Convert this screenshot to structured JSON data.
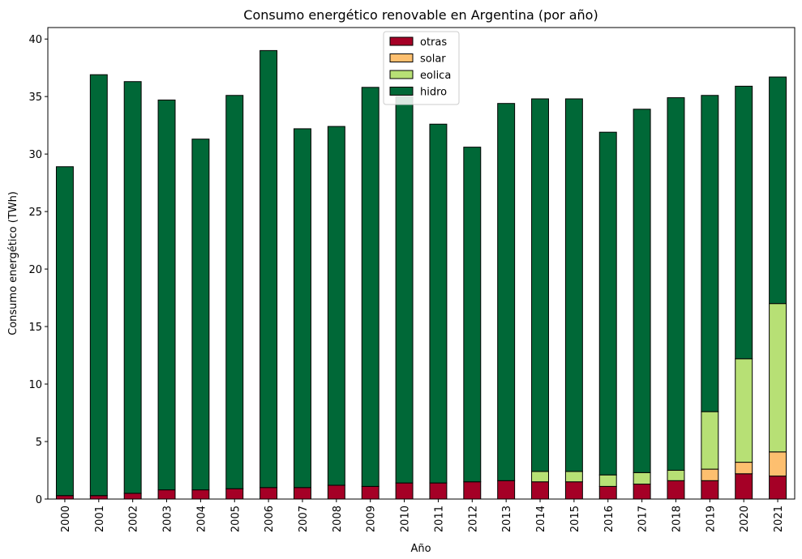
{
  "chart_data": {
    "type": "bar",
    "stacked": true,
    "title": "Consumo energético renovable en Argentina (por año)",
    "xlabel": "Año",
    "ylabel": "Consumo energético (TWh)",
    "ylim": [
      0,
      41
    ],
    "yticks": [
      0,
      5,
      10,
      15,
      20,
      25,
      30,
      35,
      40
    ],
    "grid": false,
    "legend_position": "top-center",
    "categories": [
      "2000",
      "2001",
      "2002",
      "2003",
      "2004",
      "2005",
      "2006",
      "2007",
      "2008",
      "2009",
      "2010",
      "2011",
      "2012",
      "2013",
      "2014",
      "2015",
      "2016",
      "2017",
      "2018",
      "2019",
      "2020",
      "2021"
    ],
    "series": [
      {
        "name": "otras",
        "color": "#a50026",
        "values": [
          0.3,
          0.3,
          0.5,
          0.8,
          0.8,
          0.9,
          1.0,
          1.0,
          1.2,
          1.1,
          1.4,
          1.4,
          1.5,
          1.6,
          1.5,
          1.5,
          1.1,
          1.3,
          1.6,
          1.6,
          2.2,
          2.0
        ]
      },
      {
        "name": "solar",
        "color": "#fdbf6f",
        "values": [
          0,
          0,
          0,
          0,
          0,
          0,
          0,
          0,
          0,
          0,
          0,
          0,
          0,
          0,
          0,
          0,
          0,
          0,
          0,
          1.0,
          1.0,
          2.1
        ]
      },
      {
        "name": "eolica",
        "color": "#b7e075",
        "values": [
          0,
          0,
          0,
          0,
          0,
          0,
          0,
          0,
          0,
          0,
          0,
          0,
          0,
          0,
          0.9,
          0.9,
          1.0,
          1.0,
          0.9,
          5.0,
          9.0,
          12.9
        ]
      },
      {
        "name": "hidro",
        "color": "#006837",
        "values": [
          28.6,
          36.6,
          35.8,
          33.9,
          30.5,
          34.2,
          38.0,
          31.2,
          31.2,
          34.7,
          33.6,
          31.2,
          29.1,
          32.8,
          32.4,
          32.4,
          29.8,
          31.6,
          32.4,
          27.5,
          23.7,
          19.7
        ]
      }
    ]
  }
}
